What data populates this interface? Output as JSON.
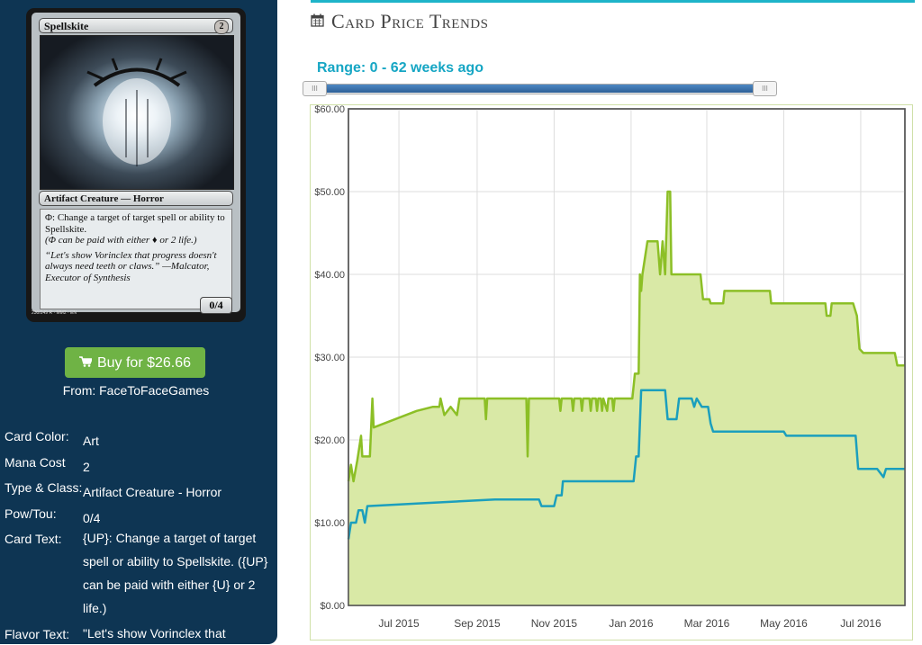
{
  "card": {
    "name": "Spellskite",
    "cost": "2",
    "type_line": "Artifact Creature — Horror",
    "rules_text_a": "Φ: Change a target of target spell or ability to Spellskite.",
    "rules_text_b": "(Φ can be paid with either ♦ or 2 life.)",
    "flavor_text": "“Let's show Vorinclex that progress doesn't always need teeth or claws.” —Malcator, Executor of Synthesis",
    "pt": "0/4",
    "footer": "230/249 R · MM2 · EN"
  },
  "buy_button": {
    "icon": "cart-icon",
    "label": "Buy for $26.66"
  },
  "seller": "From: FaceToFaceGames",
  "attributes": [
    {
      "key": "Card Color:",
      "value": "Art"
    },
    {
      "key": "Mana Cost",
      "value": "2"
    },
    {
      "key": "Type & Class:",
      "value": "Artifact Creature - Horror"
    },
    {
      "key": "Pow/Tou:",
      "value": "0/4"
    },
    {
      "key": "Card Text:",
      "value": "{UP}: Change a target of target spell or ability to Spellskite. ({UP} can be paid with either {U} or 2 life.)"
    },
    {
      "key": "Flavor Text:",
      "value": "\"Let's show Vorinclex that"
    }
  ],
  "section_title": "Card Price Trends",
  "section_icon": "calendar-icon",
  "range_label": "Range: 0 - 62 weeks ago",
  "colors": {
    "sidebar": "#0e3553",
    "accent": "#1eb4c9",
    "buy": "#6fb345",
    "series_high": "#8cbf26",
    "series_low": "#1b9fbd",
    "area_fill": "#d9e9a6"
  },
  "chart_data": {
    "type": "area",
    "title": "",
    "xlabel": "",
    "ylabel": "",
    "ylim": [
      0,
      60
    ],
    "y_ticks": [
      "$0.00",
      "$10.00",
      "$20.00",
      "$30.00",
      "$40.00",
      "$50.00",
      "$60.00"
    ],
    "x_ticks": [
      {
        "label": "Jul 2015",
        "date": "2015-07-01"
      },
      {
        "label": "Sep 2015",
        "date": "2015-09-01"
      },
      {
        "label": "Nov 2015",
        "date": "2015-11-01"
      },
      {
        "label": "Jan 2016",
        "date": "2016-01-01"
      },
      {
        "label": "Mar 2016",
        "date": "2016-03-01"
      },
      {
        "label": "May 2016",
        "date": "2016-05-01"
      },
      {
        "label": "Jul 2016",
        "date": "2016-07-01"
      }
    ],
    "xlim": [
      "2015-05-22",
      "2016-08-05"
    ],
    "grid": true,
    "series": [
      {
        "color": "#8cbf26",
        "filled": true,
        "points": [
          [
            "2015-05-22",
            15
          ],
          [
            "2015-05-24",
            17
          ],
          [
            "2015-05-26",
            15
          ],
          [
            "2015-05-29",
            17.5
          ],
          [
            "2015-06-01",
            20.5
          ],
          [
            "2015-06-02",
            18
          ],
          [
            "2015-06-08",
            18
          ],
          [
            "2015-06-10",
            25
          ],
          [
            "2015-06-11",
            21.5
          ],
          [
            "2015-07-15",
            23.5
          ],
          [
            "2015-07-28",
            24
          ],
          [
            "2015-08-02",
            24
          ],
          [
            "2015-08-03",
            25
          ],
          [
            "2015-08-06",
            23
          ],
          [
            "2015-08-11",
            24
          ],
          [
            "2015-08-16",
            23
          ],
          [
            "2015-08-18",
            25
          ],
          [
            "2015-09-07",
            25
          ],
          [
            "2015-09-08",
            22.5
          ],
          [
            "2015-09-09",
            25
          ],
          [
            "2015-10-10",
            25
          ],
          [
            "2015-10-11",
            18
          ],
          [
            "2015-10-12",
            25
          ],
          [
            "2015-11-05",
            25
          ],
          [
            "2015-11-06",
            23.5
          ],
          [
            "2015-11-07",
            25
          ],
          [
            "2015-11-15",
            25
          ],
          [
            "2015-11-16",
            23.5
          ],
          [
            "2015-11-17",
            25
          ],
          [
            "2015-11-22",
            25
          ],
          [
            "2015-11-23",
            23.5
          ],
          [
            "2015-11-24",
            25
          ],
          [
            "2015-11-29",
            25
          ],
          [
            "2015-11-30",
            23.5
          ],
          [
            "2015-12-01",
            25
          ],
          [
            "2015-12-04",
            25
          ],
          [
            "2015-12-05",
            23.5
          ],
          [
            "2015-12-06",
            25
          ],
          [
            "2015-12-08",
            25
          ],
          [
            "2015-12-09",
            23.5
          ],
          [
            "2015-12-10",
            25
          ],
          [
            "2015-12-13",
            23.5
          ],
          [
            "2015-12-14",
            25
          ],
          [
            "2015-12-17",
            25
          ],
          [
            "2015-12-18",
            23.5
          ],
          [
            "2015-12-19",
            25
          ],
          [
            "2016-01-02",
            25
          ],
          [
            "2016-01-04",
            28
          ],
          [
            "2016-01-07",
            28
          ],
          [
            "2016-01-08",
            40
          ],
          [
            "2016-01-09",
            38
          ],
          [
            "2016-01-10",
            40
          ],
          [
            "2016-01-14",
            44
          ],
          [
            "2016-01-22",
            44
          ],
          [
            "2016-01-24",
            40
          ],
          [
            "2016-01-26",
            44
          ],
          [
            "2016-01-28",
            40
          ],
          [
            "2016-01-30",
            50
          ],
          [
            "2016-02-01",
            50
          ],
          [
            "2016-02-02",
            40
          ],
          [
            "2016-02-25",
            40
          ],
          [
            "2016-02-27",
            37
          ],
          [
            "2016-03-03",
            37
          ],
          [
            "2016-03-04",
            36.5
          ],
          [
            "2016-03-14",
            36.5
          ],
          [
            "2016-03-15",
            38
          ],
          [
            "2016-04-20",
            38
          ],
          [
            "2016-04-21",
            36.5
          ],
          [
            "2016-06-03",
            36.5
          ],
          [
            "2016-06-04",
            35
          ],
          [
            "2016-06-07",
            35
          ],
          [
            "2016-06-08",
            36.5
          ],
          [
            "2016-06-25",
            36.5
          ],
          [
            "2016-06-28",
            35
          ],
          [
            "2016-06-30",
            31
          ],
          [
            "2016-07-03",
            30.5
          ],
          [
            "2016-07-28",
            30.5
          ],
          [
            "2016-07-30",
            29
          ],
          [
            "2016-08-05",
            29
          ]
        ]
      },
      {
        "color": "#1b9fbd",
        "filled": false,
        "points": [
          [
            "2015-05-22",
            8
          ],
          [
            "2015-05-24",
            10
          ],
          [
            "2015-05-28",
            10
          ],
          [
            "2015-05-30",
            11.5
          ],
          [
            "2015-06-02",
            11.5
          ],
          [
            "2015-06-04",
            10
          ],
          [
            "2015-06-06",
            12
          ],
          [
            "2015-07-15",
            12.3
          ],
          [
            "2015-09-15",
            12.8
          ],
          [
            "2015-10-20",
            12.8
          ],
          [
            "2015-10-22",
            12
          ],
          [
            "2015-11-01",
            12
          ],
          [
            "2015-11-03",
            13.3
          ],
          [
            "2015-11-07",
            13.3
          ],
          [
            "2015-11-08",
            15
          ],
          [
            "2016-01-03",
            15
          ],
          [
            "2016-01-05",
            18
          ],
          [
            "2016-01-07",
            18
          ],
          [
            "2016-01-09",
            26
          ],
          [
            "2016-01-28",
            26
          ],
          [
            "2016-01-30",
            22.5
          ],
          [
            "2016-02-06",
            22.5
          ],
          [
            "2016-02-08",
            25
          ],
          [
            "2016-02-18",
            25
          ],
          [
            "2016-02-20",
            24
          ],
          [
            "2016-02-22",
            25
          ],
          [
            "2016-02-26",
            24
          ],
          [
            "2016-03-02",
            24
          ],
          [
            "2016-03-04",
            22
          ],
          [
            "2016-03-06",
            21
          ],
          [
            "2016-05-01",
            21
          ],
          [
            "2016-05-03",
            20.5
          ],
          [
            "2016-06-27",
            20.5
          ],
          [
            "2016-06-29",
            16.5
          ],
          [
            "2016-07-14",
            16.5
          ],
          [
            "2016-07-19",
            15.5
          ],
          [
            "2016-07-21",
            16.5
          ],
          [
            "2016-08-05",
            16.5
          ]
        ]
      }
    ]
  }
}
